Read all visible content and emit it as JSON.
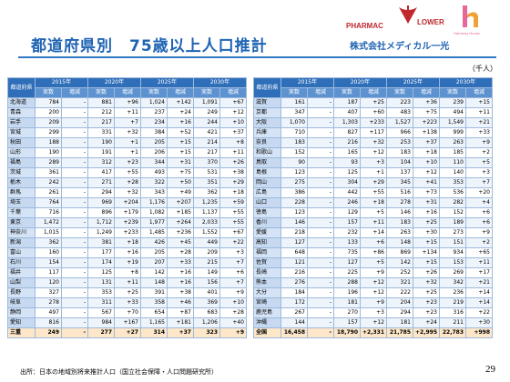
{
  "header": {
    "title": "都道府県別　75歳以上人口推計",
    "logo_pharmacy": "PHARMAC",
    "logo_lower": "LOWER",
    "logo_harmony": "Harmony House",
    "company": "株式会社メディカル一光",
    "unit": "（千人）"
  },
  "columns": {
    "region": "都道府県",
    "years": [
      "2015年",
      "2020年",
      "2025年",
      "2030年"
    ],
    "actual": "実数",
    "change": "増減"
  },
  "tables": [
    {
      "rows": [
        [
          "北海道",
          "784",
          "-",
          "881",
          "+96",
          "1,024",
          "+142",
          "1,091",
          "+67"
        ],
        [
          "青森",
          "200",
          "-",
          "212",
          "+11",
          "237",
          "+24",
          "249",
          "+12"
        ],
        [
          "岩手",
          "209",
          "-",
          "217",
          "+7",
          "234",
          "+16",
          "244",
          "+10"
        ],
        [
          "宮城",
          "299",
          "-",
          "331",
          "+32",
          "384",
          "+52",
          "421",
          "+37"
        ],
        [
          "秋田",
          "188",
          "-",
          "190",
          "+1",
          "205",
          "+15",
          "214",
          "+8"
        ],
        [
          "山形",
          "190",
          "-",
          "191",
          "+1",
          "206",
          "+15",
          "217",
          "+11"
        ],
        [
          "福島",
          "289",
          "-",
          "312",
          "+23",
          "344",
          "+31",
          "370",
          "+26"
        ],
        [
          "茨城",
          "361",
          "-",
          "417",
          "+55",
          "493",
          "+75",
          "531",
          "+38"
        ],
        [
          "栃木",
          "242",
          "-",
          "271",
          "+28",
          "322",
          "+50",
          "351",
          "+29"
        ],
        [
          "群馬",
          "261",
          "-",
          "294",
          "+32",
          "343",
          "+49",
          "362",
          "+18"
        ],
        [
          "埼玉",
          "764",
          "-",
          "969",
          "+204",
          "1,176",
          "+207",
          "1,235",
          "+59"
        ],
        [
          "千葉",
          "716",
          "-",
          "896",
          "+179",
          "1,082",
          "+185",
          "1,137",
          "+55"
        ],
        [
          "東京",
          "1,472",
          "-",
          "1,712",
          "+239",
          "1,977",
          "+264",
          "2,033",
          "+55"
        ],
        [
          "神奈川",
          "1,015",
          "-",
          "1,249",
          "+233",
          "1,485",
          "+236",
          "1,552",
          "+67"
        ],
        [
          "新潟",
          "362",
          "-",
          "381",
          "+18",
          "426",
          "+45",
          "449",
          "+22"
        ],
        [
          "富山",
          "160",
          "-",
          "177",
          "+16",
          "205",
          "+28",
          "209",
          "+3"
        ],
        [
          "石川",
          "154",
          "-",
          "174",
          "+19",
          "207",
          "+33",
          "215",
          "+7"
        ],
        [
          "福井",
          "117",
          "-",
          "125",
          "+8",
          "142",
          "+16",
          "149",
          "+6"
        ],
        [
          "山梨",
          "120",
          "-",
          "131",
          "+11",
          "148",
          "+16",
          "156",
          "+7"
        ],
        [
          "長野",
          "327",
          "-",
          "353",
          "+25",
          "391",
          "+38",
          "401",
          "+9"
        ],
        [
          "岐阜",
          "278",
          "-",
          "311",
          "+33",
          "358",
          "+46",
          "369",
          "+10"
        ],
        [
          "静岡",
          "497",
          "-",
          "567",
          "+70",
          "654",
          "+87",
          "683",
          "+28"
        ],
        [
          "愛知",
          "816",
          "-",
          "984",
          "+167",
          "1,165",
          "+181",
          "1,206",
          "+40"
        ],
        [
          "三重",
          "249",
          "-",
          "277",
          "+27",
          "314",
          "+37",
          "323",
          "+9"
        ]
      ]
    },
    {
      "rows": [
        [
          "滋賀",
          "161",
          "-",
          "187",
          "+25",
          "223",
          "+36",
          "239",
          "+15"
        ],
        [
          "京都",
          "347",
          "-",
          "407",
          "+60",
          "483",
          "+75",
          "494",
          "+11"
        ],
        [
          "大阪",
          "1,070",
          "-",
          "1,303",
          "+233",
          "1,527",
          "+223",
          "1,549",
          "+21"
        ],
        [
          "兵庫",
          "710",
          "-",
          "827",
          "+117",
          "966",
          "+138",
          "999",
          "+33"
        ],
        [
          "奈良",
          "183",
          "-",
          "216",
          "+32",
          "253",
          "+37",
          "263",
          "+9"
        ],
        [
          "和歌山",
          "152",
          "-",
          "165",
          "+12",
          "183",
          "+18",
          "185",
          "+2"
        ],
        [
          "鳥取",
          "90",
          "-",
          "93",
          "+3",
          "104",
          "+10",
          "110",
          "+5"
        ],
        [
          "島根",
          "123",
          "-",
          "125",
          "+1",
          "137",
          "+12",
          "140",
          "+3"
        ],
        [
          "岡山",
          "275",
          "-",
          "304",
          "+29",
          "345",
          "+41",
          "353",
          "+7"
        ],
        [
          "広島",
          "386",
          "-",
          "442",
          "+55",
          "516",
          "+73",
          "536",
          "+20"
        ],
        [
          "山口",
          "228",
          "-",
          "246",
          "+18",
          "278",
          "+31",
          "282",
          "+4"
        ],
        [
          "徳島",
          "123",
          "-",
          "129",
          "+5",
          "146",
          "+16",
          "152",
          "+6"
        ],
        [
          "香川",
          "146",
          "-",
          "157",
          "+11",
          "183",
          "+25",
          "189",
          "+6"
        ],
        [
          "愛媛",
          "218",
          "-",
          "232",
          "+14",
          "263",
          "+30",
          "273",
          "+9"
        ],
        [
          "高知",
          "127",
          "-",
          "133",
          "+6",
          "148",
          "+15",
          "151",
          "+2"
        ],
        [
          "福岡",
          "648",
          "-",
          "735",
          "+86",
          "869",
          "+134",
          "934",
          "+65"
        ],
        [
          "佐賀",
          "121",
          "-",
          "127",
          "+5",
          "142",
          "+15",
          "153",
          "+11"
        ],
        [
          "長崎",
          "216",
          "-",
          "225",
          "+9",
          "252",
          "+26",
          "269",
          "+17"
        ],
        [
          "熊本",
          "276",
          "-",
          "288",
          "+12",
          "321",
          "+32",
          "342",
          "+21"
        ],
        [
          "大分",
          "184",
          "-",
          "196",
          "+12",
          "222",
          "+25",
          "236",
          "+14"
        ],
        [
          "宮崎",
          "172",
          "-",
          "181",
          "+9",
          "204",
          "+23",
          "219",
          "+14"
        ],
        [
          "鹿児島",
          "267",
          "-",
          "270",
          "+3",
          "294",
          "+23",
          "316",
          "+22"
        ],
        [
          "沖縄",
          "144",
          "-",
          "157",
          "+12",
          "181",
          "+24",
          "211",
          "+30"
        ],
        [
          "全国",
          "16,458",
          "-",
          "18,790",
          "+2,331",
          "21,785",
          "+2,995",
          "22,783",
          "+998"
        ]
      ]
    }
  ],
  "footer": {
    "source": "出所：日本の地域別将来推計人口（国立社会保障・人口問題研究所）",
    "page": "29"
  }
}
